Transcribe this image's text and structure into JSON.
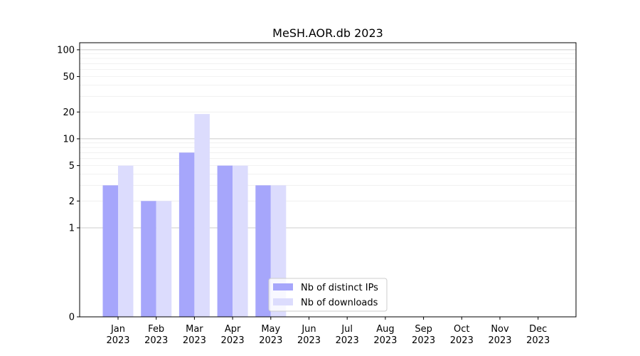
{
  "chart_data": {
    "type": "bar",
    "title": "MeSH.AOR.db 2023",
    "xlabel": "",
    "ylabel": "",
    "y_scale": "symlog",
    "ylim": [
      0,
      120
    ],
    "y_ticks": [
      0,
      1,
      2,
      5,
      10,
      20,
      50,
      100
    ],
    "y_tick_labels": [
      "0",
      "1",
      "2",
      "5",
      "10",
      "20",
      "50",
      "100"
    ],
    "categories": [
      "Jan\n2023",
      "Feb\n2023",
      "Mar\n2023",
      "Apr\n2023",
      "May\n2023",
      "Jun\n2023",
      "Jul\n2023",
      "Aug\n2023",
      "Sep\n2023",
      "Oct\n2023",
      "Nov\n2023",
      "Dec\n2023"
    ],
    "series": [
      {
        "name": "Nb of distinct IPs",
        "color": "#a6a6fb",
        "values": [
          3,
          2,
          7,
          5,
          3,
          0,
          0,
          0,
          0,
          0,
          0,
          0
        ]
      },
      {
        "name": "Nb of downloads",
        "color": "#dcdcfd",
        "values": [
          5,
          2,
          19,
          5,
          3,
          0,
          0,
          0,
          0,
          0,
          0,
          0
        ]
      }
    ],
    "legend_position": "bottom-center",
    "grid": "horizontal"
  }
}
